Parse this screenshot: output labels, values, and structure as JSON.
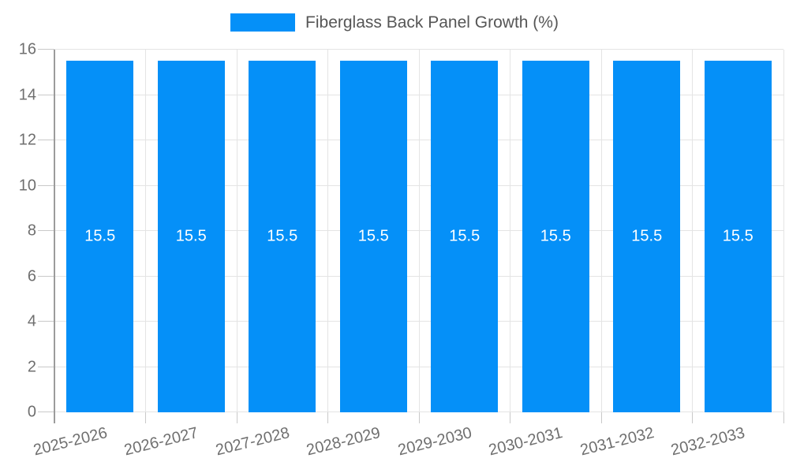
{
  "legend": {
    "label": "Fiberglass Back Panel Growth (%)"
  },
  "chart_data": {
    "type": "bar",
    "title": "Fiberglass Back Panel Growth (%)",
    "categories": [
      "2025-2026",
      "2026-2027",
      "2027-2028",
      "2028-2029",
      "2029-2030",
      "2030-2031",
      "2031-2032",
      "2032-2033"
    ],
    "values": [
      15.5,
      15.5,
      15.5,
      15.5,
      15.5,
      15.5,
      15.5,
      15.5
    ],
    "value_labels": [
      "15.5",
      "15.5",
      "15.5",
      "15.5",
      "15.5",
      "15.5",
      "15.5",
      "15.5"
    ],
    "xlabel": "",
    "ylabel": "",
    "ylim": [
      0,
      16
    ],
    "yticks": [
      0,
      2,
      4,
      6,
      8,
      10,
      12,
      14,
      16
    ],
    "grid": true,
    "vertical_gridlines": true,
    "legend_position": "top-center",
    "x_label_rotation_deg": -14,
    "colors": {
      "bar": "#0590f8",
      "value_label": "#ffffff",
      "axis_text": "#6f6f6f",
      "legend_text": "#565656",
      "grid_line": "#e4e4e4",
      "axis_line": "#9b9b9b",
      "tick": "#c9c9c9",
      "background": "#ffffff"
    }
  }
}
